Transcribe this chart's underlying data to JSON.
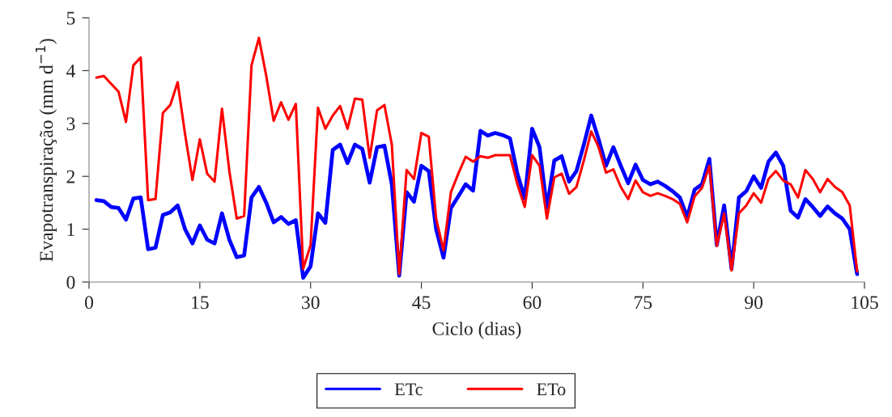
{
  "chart_data": {
    "type": "line",
    "xlabel": "Ciclo (dias)",
    "ylabel": "Evapotranspiração (mm d$^{−1}$)",
    "x": [
      1,
      2,
      3,
      4,
      5,
      6,
      7,
      8,
      9,
      10,
      11,
      12,
      13,
      14,
      15,
      16,
      17,
      18,
      19,
      20,
      21,
      22,
      23,
      24,
      25,
      26,
      27,
      28,
      29,
      30,
      31,
      32,
      33,
      34,
      35,
      36,
      37,
      38,
      39,
      40,
      41,
      42,
      43,
      44,
      45,
      46,
      47,
      48,
      49,
      50,
      51,
      52,
      53,
      54,
      55,
      56,
      57,
      58,
      59,
      60,
      61,
      62,
      63,
      64,
      65,
      66,
      67,
      68,
      69,
      70,
      71,
      72,
      73,
      74,
      75,
      76,
      77,
      78,
      79,
      80,
      81,
      82,
      83,
      84,
      85,
      86,
      87,
      88,
      89,
      90,
      91,
      92,
      93,
      94,
      95,
      96,
      97,
      98,
      99,
      100,
      101,
      102,
      103,
      104
    ],
    "series": [
      {
        "name": "ETc",
        "color": "#0000ff",
        "values": [
          1.55,
          1.53,
          1.42,
          1.4,
          1.18,
          1.58,
          1.6,
          0.62,
          0.65,
          1.27,
          1.32,
          1.45,
          1.0,
          0.73,
          1.07,
          0.8,
          0.73,
          1.3,
          0.8,
          0.47,
          0.5,
          1.6,
          1.8,
          1.5,
          1.13,
          1.23,
          1.1,
          1.17,
          0.08,
          0.3,
          1.3,
          1.12,
          2.5,
          2.6,
          2.25,
          2.6,
          2.52,
          1.88,
          2.55,
          2.58,
          1.85,
          0.12,
          1.7,
          1.52,
          2.2,
          2.1,
          1.0,
          0.46,
          1.4,
          1.62,
          1.85,
          1.73,
          2.86,
          2.77,
          2.82,
          2.78,
          2.72,
          2.05,
          1.58,
          2.9,
          2.55,
          1.4,
          2.3,
          2.38,
          1.9,
          2.1,
          2.6,
          3.15,
          2.7,
          2.2,
          2.55,
          2.2,
          1.87,
          2.22,
          1.93,
          1.85,
          1.9,
          1.82,
          1.72,
          1.6,
          1.23,
          1.75,
          1.85,
          2.33,
          0.7,
          1.45,
          0.25,
          1.6,
          1.72,
          2.0,
          1.78,
          2.28,
          2.45,
          2.2,
          1.35,
          1.22,
          1.57,
          1.42,
          1.25,
          1.43,
          1.3,
          1.2,
          1.0,
          0.15
        ]
      },
      {
        "name": "ETo",
        "color": "#ff0000",
        "values": [
          3.87,
          3.9,
          3.75,
          3.6,
          3.03,
          4.1,
          4.25,
          1.55,
          1.57,
          3.2,
          3.35,
          3.78,
          2.8,
          1.93,
          2.7,
          2.05,
          1.9,
          3.28,
          2.1,
          1.2,
          1.25,
          4.1,
          4.62,
          3.9,
          3.05,
          3.4,
          3.07,
          3.37,
          0.25,
          0.7,
          3.3,
          2.9,
          3.15,
          3.33,
          2.9,
          3.47,
          3.45,
          2.35,
          3.25,
          3.35,
          2.6,
          0.15,
          2.12,
          1.95,
          2.82,
          2.75,
          1.2,
          0.6,
          1.7,
          2.05,
          2.37,
          2.28,
          2.38,
          2.35,
          2.4,
          2.4,
          2.4,
          1.85,
          1.42,
          2.4,
          2.2,
          1.2,
          1.98,
          2.05,
          1.67,
          1.8,
          2.3,
          2.85,
          2.55,
          2.07,
          2.13,
          1.8,
          1.57,
          1.92,
          1.7,
          1.63,
          1.68,
          1.63,
          1.57,
          1.48,
          1.13,
          1.62,
          1.78,
          2.2,
          0.68,
          1.3,
          0.22,
          1.3,
          1.45,
          1.68,
          1.5,
          1.95,
          2.1,
          1.92,
          1.85,
          1.6,
          2.12,
          1.95,
          1.7,
          1.95,
          1.8,
          1.7,
          1.45,
          0.2
        ]
      }
    ],
    "xlim": [
      0,
      105
    ],
    "xticks": [
      0,
      15,
      30,
      45,
      60,
      75,
      90,
      105
    ],
    "ylim": [
      0,
      5
    ],
    "yticks": [
      0,
      1,
      2,
      3,
      4,
      5
    ],
    "grid": false,
    "legend": "bottom",
    "marker": "none",
    "line_style": "solid"
  }
}
